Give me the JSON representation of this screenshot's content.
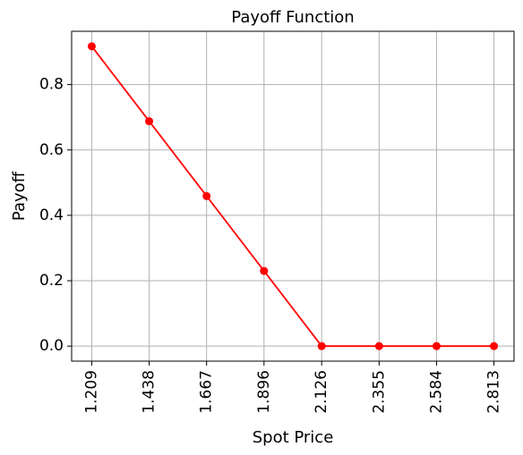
{
  "chart_data": {
    "type": "line",
    "title": "Payoff Function",
    "xlabel": "Spot Price",
    "ylabel": "Payoff",
    "x": [
      1.209,
      1.438,
      1.667,
      1.896,
      2.126,
      2.355,
      2.584,
      2.813
    ],
    "x_tick_labels": [
      "1.209",
      "1.438",
      "1.667",
      "1.896",
      "2.126",
      "2.355",
      "2.584",
      "2.813"
    ],
    "series": [
      {
        "values": [
          0.917,
          0.688,
          0.459,
          0.23,
          0.0,
          0.0,
          0.0,
          0.0
        ],
        "color": "#ff0000",
        "marker": "circle"
      }
    ],
    "y_ticks": [
      0.0,
      0.2,
      0.4,
      0.6,
      0.8
    ],
    "y_tick_labels": [
      "0.0",
      "0.2",
      "0.4",
      "0.6",
      "0.8"
    ],
    "ylim": [
      -0.046,
      0.963
    ],
    "grid": true,
    "legend": "none"
  }
}
